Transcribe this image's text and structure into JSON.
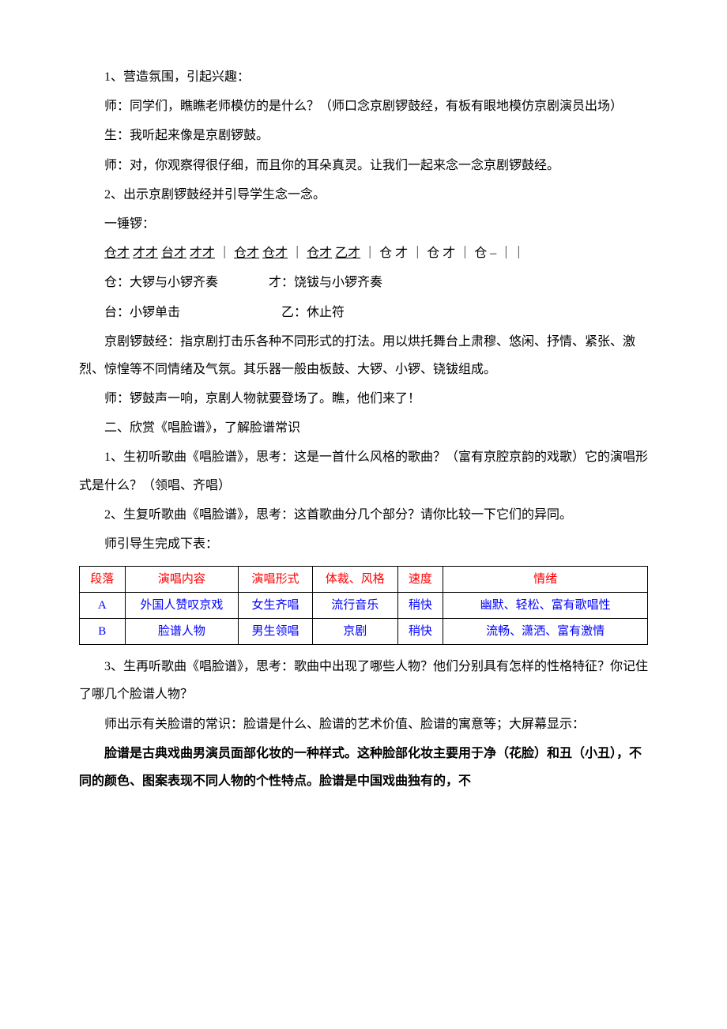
{
  "colors": {
    "header_text": "#ff0000",
    "cell_text": "#0000ff",
    "body_text": "#000000"
  },
  "p1": "1、营造氛围，引起兴趣：",
  "p2": "师：同学们，瞧瞧老师模仿的是什么？（师口念京剧锣鼓经，有板有眼地模仿京剧演员出场）",
  "p3": "生：我听起来像是京剧锣鼓。",
  "p4": "师：对，你观察得很仔细，而且你的耳朵真灵。让我们一起来念一念京剧锣鼓经。",
  "p5": "2、出示京剧锣鼓经并引导学生念一念。",
  "p6": "一锤锣：",
  "notation": {
    "g1": "仓才",
    "g2": "才才",
    "g3": "台才",
    "g4": "才才",
    "bar1": "｜",
    "g5": "仓才",
    "g6": "仓才",
    "bar2": "｜",
    "g7": "仓才",
    "g8": "乙才",
    "bar3": "｜",
    "g9": "仓 才",
    "bar4": "｜",
    "g10": "仓 才",
    "bar5": "｜",
    "g11": "仓 –",
    "bar6": "｜｜"
  },
  "inst1a": "仓：大锣与小锣齐奏",
  "inst1b": "才：饶钹与小锣齐奏",
  "inst2a": "台：小锣单击",
  "inst2b": "乙：休止符",
  "p7": "京剧锣鼓经：指京剧打击乐各种不同形式的打法。用以烘托舞台上肃穆、悠闲、抒情、紧张、激烈、惊惶等不同情绪及气氛。其乐器一般由板鼓、大锣、小锣、铙钹组成。",
  "p8": "师：锣鼓声一响，京剧人物就要登场了。瞧，他们来了！",
  "p9": "二、欣赏《唱脸谱》，了解脸谱常识",
  "p10": "1、生初听歌曲《唱脸谱》，思考：这是一首什么风格的歌曲？（富有京腔京韵的戏歌）它的演唱形式是什么？（领唱、齐唱）",
  "p11": "2、生复听歌曲《唱脸谱》，思考：这首歌曲分几个部分？请你比较一下它们的异同。",
  "p12": "师引导生完成下表：",
  "table": {
    "headers": {
      "section": "段落",
      "content": "演唱内容",
      "form": "演唱形式",
      "genre": "体裁、风格",
      "speed": "速度",
      "mood": "情绪"
    },
    "rows": [
      {
        "section": "A",
        "content": "外国人赞叹京戏",
        "form": "女生齐唱",
        "genre": "流行音乐",
        "speed": "稍快",
        "mood": "幽默、轻松、富有歌唱性"
      },
      {
        "section": "B",
        "content": "脸谱人物",
        "form": "男生领唱",
        "genre": "京剧",
        "speed": "稍快",
        "mood": "流畅、潇洒、富有激情"
      }
    ]
  },
  "p13": "3、生再听歌曲《唱脸谱》，思考：歌曲中出现了哪些人物？他们分别具有怎样的性格特征？你记住了哪几个脸谱人物？",
  "p14": "师出示有关脸谱的常识：脸谱是什么、脸谱的艺术价值、脸谱的寓意等；大屏幕显示：",
  "p15": "脸谱是古典戏曲男演员面部化妆的一种样式。这种脸部化妆主要用于净（花脸）和丑（小丑），不同的颜色、图案表现不同人物的个性特点。脸谱是中国戏曲独有的，不"
}
